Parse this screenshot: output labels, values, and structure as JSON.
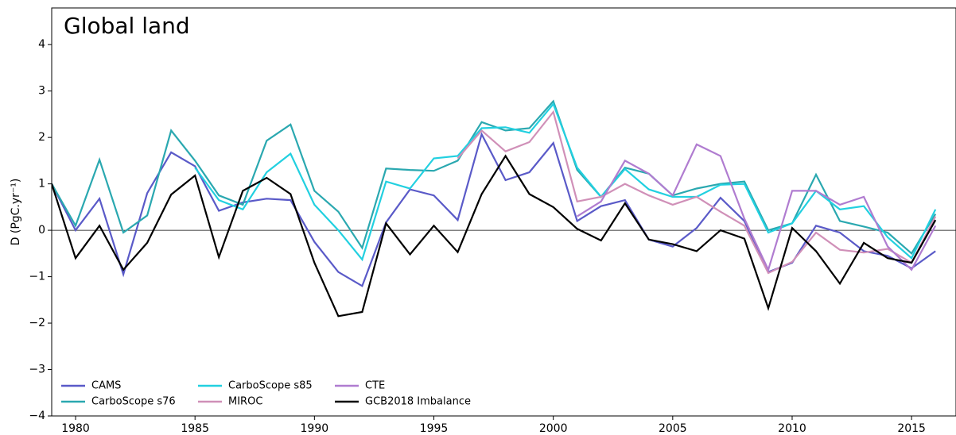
{
  "chart_data": {
    "type": "line",
    "title": "Global land",
    "y_label": "D (PgC.yr⁻¹)",
    "x": [
      1979,
      1980,
      1981,
      1982,
      1983,
      1984,
      1985,
      1986,
      1987,
      1988,
      1989,
      1990,
      1991,
      1992,
      1993,
      1994,
      1995,
      1996,
      1997,
      1998,
      1999,
      2000,
      2001,
      2002,
      2003,
      2004,
      2005,
      2006,
      2007,
      2008,
      2009,
      2010,
      2011,
      2012,
      2013,
      2014,
      2015,
      2016
    ],
    "xlim": [
      1979,
      2016.86
    ],
    "xticks": [
      1980,
      1985,
      1990,
      1995,
      2000,
      2005,
      2010,
      2015
    ],
    "ylim": [
      -4,
      4.79
    ],
    "yticks": [
      {
        "value": -4,
        "label": "−4"
      },
      {
        "value": -3,
        "label": "−3"
      },
      {
        "value": -2,
        "label": "−2"
      },
      {
        "value": -1,
        "label": "−1"
      },
      0,
      1,
      2,
      3,
      4
    ],
    "zero_line": true,
    "legend_position": "lower left",
    "series": [
      {
        "name": "CAMS",
        "color": "#5a5ac8",
        "values": [
          1.0,
          0.0,
          0.68,
          -0.95,
          0.8,
          1.68,
          1.38,
          0.42,
          0.6,
          0.68,
          0.65,
          -0.25,
          -0.9,
          -1.2,
          0.17,
          0.88,
          0.75,
          0.22,
          2.07,
          1.08,
          1.25,
          1.88,
          0.2,
          0.52,
          0.65,
          -0.2,
          -0.35,
          0.05,
          0.7,
          0.2,
          -0.9,
          -0.7,
          0.1,
          -0.05,
          -0.45,
          -0.55,
          -0.82,
          -0.45
        ]
      },
      {
        "name": "CarboScope s76",
        "color": "#2aa8b0",
        "values": [
          1.0,
          0.1,
          1.52,
          -0.05,
          0.32,
          2.15,
          1.5,
          0.75,
          0.55,
          1.93,
          2.28,
          0.85,
          0.4,
          -0.38,
          1.33,
          1.3,
          1.28,
          1.5,
          2.33,
          2.15,
          2.2,
          2.78,
          1.3,
          0.72,
          1.35,
          1.22,
          0.75,
          0.9,
          1.0,
          1.05,
          0.0,
          0.15,
          1.2,
          0.2,
          0.08,
          -0.05,
          -0.5,
          0.35
        ]
      },
      {
        "name": "CarboScope s85",
        "color": "#22d0e0",
        "values": [
          null,
          null,
          null,
          null,
          null,
          null,
          1.35,
          0.65,
          0.45,
          1.25,
          1.65,
          0.55,
          0.0,
          -0.63,
          1.05,
          0.9,
          1.55,
          1.6,
          2.2,
          2.22,
          2.1,
          2.72,
          1.35,
          0.72,
          1.32,
          0.88,
          0.72,
          0.72,
          0.98,
          1.0,
          -0.05,
          0.15,
          0.85,
          0.45,
          0.52,
          -0.15,
          -0.6,
          0.45
        ]
      },
      {
        "name": "MIROC",
        "color": "#d090b8",
        "values": [
          null,
          null,
          null,
          null,
          null,
          null,
          null,
          null,
          null,
          null,
          null,
          null,
          null,
          null,
          null,
          null,
          null,
          1.55,
          2.15,
          1.7,
          1.9,
          2.55,
          0.62,
          0.72,
          1.0,
          0.75,
          0.55,
          0.72,
          0.4,
          0.1,
          -0.92,
          -0.68,
          -0.05,
          -0.42,
          -0.48,
          -0.4,
          -0.7,
          0.3
        ]
      },
      {
        "name": "CTE",
        "color": "#b07cd0",
        "values": [
          null,
          null,
          null,
          null,
          null,
          null,
          null,
          null,
          null,
          null,
          null,
          null,
          null,
          null,
          null,
          null,
          null,
          null,
          null,
          null,
          null,
          null,
          0.3,
          0.62,
          1.5,
          1.22,
          0.75,
          1.85,
          1.6,
          0.25,
          -0.85,
          0.85,
          0.85,
          0.55,
          0.72,
          -0.35,
          -0.85,
          0.1
        ]
      },
      {
        "name": "GCB2018 Imbalance",
        "color": "#000000",
        "values": [
          1.0,
          -0.6,
          0.1,
          -0.85,
          -0.27,
          0.77,
          1.18,
          -0.58,
          0.85,
          1.13,
          0.78,
          -0.7,
          -1.85,
          -1.76,
          0.15,
          -0.52,
          0.1,
          -0.47,
          0.78,
          1.6,
          0.78,
          0.5,
          0.03,
          -0.22,
          0.58,
          -0.2,
          -0.3,
          -0.45,
          0.0,
          -0.18,
          -1.68,
          0.05,
          -0.45,
          -1.15,
          -0.27,
          -0.6,
          -0.7,
          0.22
        ]
      }
    ]
  }
}
